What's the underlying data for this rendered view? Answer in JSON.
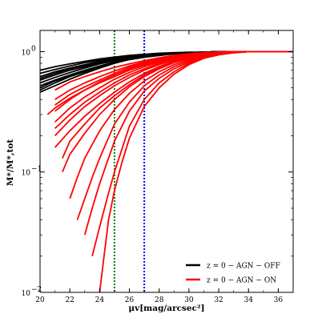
{
  "chart_data": {
    "type": "line",
    "xlabel": "μv[mag/arcsec²]",
    "ylabel": "M*/M*,tot",
    "xlim": [
      20,
      37
    ],
    "ylim": [
      0.01,
      1.5
    ],
    "yscale": "log",
    "x_ticks": [
      "20",
      "22",
      "24",
      "26",
      "28",
      "30",
      "32",
      "34",
      "36"
    ],
    "y_ticks": [
      {
        "base": "10",
        "exp": "0",
        "value": 1
      },
      {
        "base": "10",
        "exp": "−1",
        "value": 0.1
      },
      {
        "base": "10",
        "exp": "−2",
        "value": 0.01
      }
    ],
    "grid": false,
    "legend_position": "lower-right",
    "vlines": [
      {
        "x": 25,
        "color": "#008000",
        "style": "dotted"
      },
      {
        "x": 27,
        "color": "#0000ff",
        "style": "dotted"
      }
    ],
    "series": [
      {
        "name": "z = 0 − AGN − OFF",
        "color": "#000000",
        "curves": [
          {
            "x": [
              20,
              21,
              22,
              23,
              24,
              25,
              26,
              27,
              28,
              29,
              30,
              31,
              32,
              37
            ],
            "y": [
              0.62,
              0.68,
              0.73,
              0.78,
              0.83,
              0.87,
              0.9,
              0.93,
              0.95,
              0.97,
              0.98,
              0.99,
              1.0,
              1.0
            ]
          },
          {
            "x": [
              20,
              21,
              22,
              23,
              24,
              25,
              26,
              27,
              28,
              29,
              30,
              31,
              32,
              37
            ],
            "y": [
              0.58,
              0.64,
              0.7,
              0.75,
              0.8,
              0.85,
              0.89,
              0.92,
              0.95,
              0.97,
              0.98,
              0.99,
              1.0,
              1.0
            ]
          },
          {
            "x": [
              20,
              21,
              22,
              23,
              24,
              25,
              26,
              27,
              28,
              29,
              30,
              31,
              32,
              37
            ],
            "y": [
              0.55,
              0.61,
              0.67,
              0.73,
              0.79,
              0.84,
              0.88,
              0.92,
              0.94,
              0.96,
              0.98,
              0.99,
              1.0,
              1.0
            ]
          },
          {
            "x": [
              20,
              21,
              22,
              23,
              24,
              25,
              26,
              27,
              28,
              29,
              30,
              31,
              32,
              37
            ],
            "y": [
              0.52,
              0.58,
              0.64,
              0.7,
              0.76,
              0.82,
              0.87,
              0.91,
              0.94,
              0.96,
              0.98,
              0.99,
              1.0,
              1.0
            ]
          },
          {
            "x": [
              20,
              21,
              22,
              23,
              24,
              25,
              26,
              27,
              28,
              29,
              30,
              31,
              32,
              37
            ],
            "y": [
              0.48,
              0.55,
              0.62,
              0.68,
              0.75,
              0.81,
              0.86,
              0.9,
              0.93,
              0.96,
              0.98,
              0.99,
              1.0,
              1.0
            ]
          },
          {
            "x": [
              20,
              21,
              22,
              23,
              24,
              25,
              26,
              27,
              28,
              29,
              30,
              31,
              32,
              37
            ],
            "y": [
              0.66,
              0.71,
              0.76,
              0.81,
              0.85,
              0.89,
              0.92,
              0.94,
              0.96,
              0.97,
              0.98,
              0.99,
              1.0,
              1.0
            ]
          },
          {
            "x": [
              20,
              21,
              22,
              23,
              24,
              25,
              26,
              27,
              28,
              29,
              30,
              31,
              32,
              37
            ],
            "y": [
              0.6,
              0.66,
              0.72,
              0.77,
              0.82,
              0.86,
              0.9,
              0.93,
              0.95,
              0.97,
              0.98,
              0.99,
              1.0,
              1.0
            ]
          },
          {
            "x": [
              20,
              21,
              22,
              23,
              24,
              25,
              26,
              27,
              28,
              29,
              30,
              31,
              32,
              37
            ],
            "y": [
              0.5,
              0.57,
              0.63,
              0.69,
              0.75,
              0.81,
              0.86,
              0.9,
              0.94,
              0.96,
              0.98,
              0.99,
              1.0,
              1.0
            ]
          },
          {
            "x": [
              20,
              21,
              22,
              23,
              24,
              25,
              26,
              27,
              28,
              29,
              30,
              31,
              32,
              37
            ],
            "y": [
              0.7,
              0.75,
              0.79,
              0.83,
              0.87,
              0.9,
              0.93,
              0.95,
              0.97,
              0.98,
              0.99,
              0.99,
              1.0,
              1.0
            ]
          },
          {
            "x": [
              20,
              21,
              22,
              23,
              24,
              25,
              26,
              27,
              28,
              29,
              30,
              31,
              32,
              37
            ],
            "y": [
              0.46,
              0.52,
              0.59,
              0.66,
              0.73,
              0.8,
              0.86,
              0.9,
              0.93,
              0.96,
              0.98,
              0.99,
              1.0,
              1.0
            ]
          }
        ]
      },
      {
        "name": "z = 0 − AGN − ON",
        "color": "#ff0000",
        "curves": [
          {
            "x": [
              21,
              22,
              23,
              24,
              25,
              26,
              27,
              28,
              29,
              30,
              31,
              32,
              33,
              34,
              37
            ],
            "y": [
              0.48,
              0.56,
              0.62,
              0.68,
              0.74,
              0.79,
              0.84,
              0.89,
              0.93,
              0.96,
              0.98,
              0.99,
              1.0,
              1.0,
              1.0
            ]
          },
          {
            "x": [
              21,
              22,
              23,
              24,
              25,
              26,
              27,
              28,
              29,
              30,
              31,
              32,
              33,
              34,
              37
            ],
            "y": [
              0.4,
              0.48,
              0.55,
              0.62,
              0.69,
              0.76,
              0.82,
              0.87,
              0.92,
              0.95,
              0.97,
              0.99,
              1.0,
              1.0,
              1.0
            ]
          },
          {
            "x": [
              21,
              22,
              23,
              24,
              25,
              26,
              27,
              28,
              29,
              30,
              31,
              32,
              33,
              34,
              37
            ],
            "y": [
              0.32,
              0.4,
              0.48,
              0.56,
              0.64,
              0.72,
              0.79,
              0.85,
              0.9,
              0.94,
              0.97,
              0.99,
              1.0,
              1.0,
              1.0
            ]
          },
          {
            "x": [
              21,
              22,
              23,
              24,
              25,
              26,
              27,
              28,
              29,
              30,
              31,
              32,
              33,
              34,
              37
            ],
            "y": [
              0.26,
              0.34,
              0.42,
              0.5,
              0.59,
              0.67,
              0.75,
              0.82,
              0.88,
              0.93,
              0.96,
              0.98,
              0.99,
              1.0,
              1.0
            ]
          },
          {
            "x": [
              20.5,
              21,
              22,
              23,
              24,
              25,
              26,
              27,
              28,
              29,
              30,
              31,
              32,
              33,
              34,
              37
            ],
            "y": [
              0.3,
              0.34,
              0.41,
              0.48,
              0.55,
              0.62,
              0.7,
              0.77,
              0.84,
              0.9,
              0.94,
              0.97,
              0.99,
              1.0,
              1.0,
              1.0
            ]
          },
          {
            "x": [
              21,
              22,
              23,
              24,
              25,
              26,
              27,
              28,
              29,
              30,
              31,
              32,
              33,
              34,
              37
            ],
            "y": [
              0.2,
              0.27,
              0.35,
              0.43,
              0.52,
              0.61,
              0.7,
              0.78,
              0.85,
              0.91,
              0.95,
              0.98,
              0.99,
              1.0,
              1.0
            ]
          },
          {
            "x": [
              21,
              22,
              23,
              24,
              25,
              26,
              27,
              28,
              29,
              30,
              31,
              32,
              33,
              34,
              37
            ],
            "y": [
              0.16,
              0.22,
              0.29,
              0.37,
              0.46,
              0.56,
              0.66,
              0.75,
              0.83,
              0.9,
              0.94,
              0.97,
              0.99,
              1.0,
              1.0
            ]
          },
          {
            "x": [
              21.5,
              22,
              23,
              24,
              25,
              26,
              27,
              28,
              29,
              30,
              31,
              32,
              33,
              34,
              37
            ],
            "y": [
              0.1,
              0.14,
              0.21,
              0.3,
              0.4,
              0.51,
              0.62,
              0.72,
              0.81,
              0.88,
              0.93,
              0.97,
              0.99,
              1.0,
              1.0
            ]
          },
          {
            "x": [
              22,
              22.5,
              23,
              24,
              25,
              26,
              27,
              28,
              29,
              30,
              31,
              32,
              33,
              34,
              37
            ],
            "y": [
              0.06,
              0.09,
              0.13,
              0.22,
              0.33,
              0.45,
              0.57,
              0.68,
              0.78,
              0.86,
              0.92,
              0.96,
              0.99,
              1.0,
              1.0
            ]
          },
          {
            "x": [
              22.5,
              23,
              23.5,
              24,
              25,
              26,
              27,
              28,
              29,
              30,
              31,
              32,
              33,
              34,
              37
            ],
            "y": [
              0.04,
              0.06,
              0.09,
              0.13,
              0.25,
              0.38,
              0.52,
              0.64,
              0.75,
              0.84,
              0.91,
              0.95,
              0.98,
              1.0,
              1.0
            ]
          },
          {
            "x": [
              23,
              23.5,
              24,
              24.5,
              25,
              26,
              27,
              28,
              29,
              30,
              31,
              32,
              33,
              34,
              37
            ],
            "y": [
              0.03,
              0.05,
              0.08,
              0.12,
              0.18,
              0.32,
              0.47,
              0.6,
              0.72,
              0.82,
              0.9,
              0.95,
              0.98,
              1.0,
              1.0
            ]
          },
          {
            "x": [
              23.5,
              24,
              24.5,
              25,
              26,
              27,
              28,
              29,
              30,
              31,
              32,
              33,
              34,
              37
            ],
            "y": [
              0.02,
              0.035,
              0.06,
              0.1,
              0.24,
              0.4,
              0.55,
              0.68,
              0.8,
              0.89,
              0.95,
              0.98,
              1.0,
              1.0
            ]
          },
          {
            "x": [
              24,
              24.3,
              24.6,
              25,
              25.5,
              26,
              27,
              28,
              29,
              30,
              31,
              32,
              33,
              34,
              37
            ],
            "y": [
              0.01,
              0.02,
              0.04,
              0.07,
              0.12,
              0.19,
              0.35,
              0.5,
              0.65,
              0.78,
              0.88,
              0.94,
              0.98,
              1.0,
              1.0
            ]
          },
          {
            "x": [
              21,
              22,
              23,
              24,
              25,
              26,
              27,
              28,
              29,
              30,
              31,
              32,
              33,
              34,
              37
            ],
            "y": [
              0.36,
              0.44,
              0.51,
              0.58,
              0.66,
              0.74,
              0.81,
              0.87,
              0.92,
              0.95,
              0.98,
              0.99,
              1.0,
              1.0,
              1.0
            ]
          },
          {
            "x": [
              21,
              22,
              23,
              24,
              25,
              26,
              27,
              28,
              29,
              30,
              31,
              32,
              33,
              34,
              37
            ],
            "y": [
              0.23,
              0.3,
              0.38,
              0.46,
              0.55,
              0.64,
              0.72,
              0.8,
              0.87,
              0.92,
              0.96,
              0.98,
              0.99,
              1.0,
              1.0
            ]
          },
          {
            "x": [
              21.5,
              22,
              23,
              24,
              25,
              26,
              27,
              28,
              29,
              30,
              31,
              32,
              33,
              34,
              37
            ],
            "y": [
              0.13,
              0.18,
              0.25,
              0.34,
              0.43,
              0.53,
              0.64,
              0.74,
              0.82,
              0.89,
              0.94,
              0.97,
              0.99,
              1.0,
              1.0
            ]
          }
        ]
      }
    ]
  }
}
